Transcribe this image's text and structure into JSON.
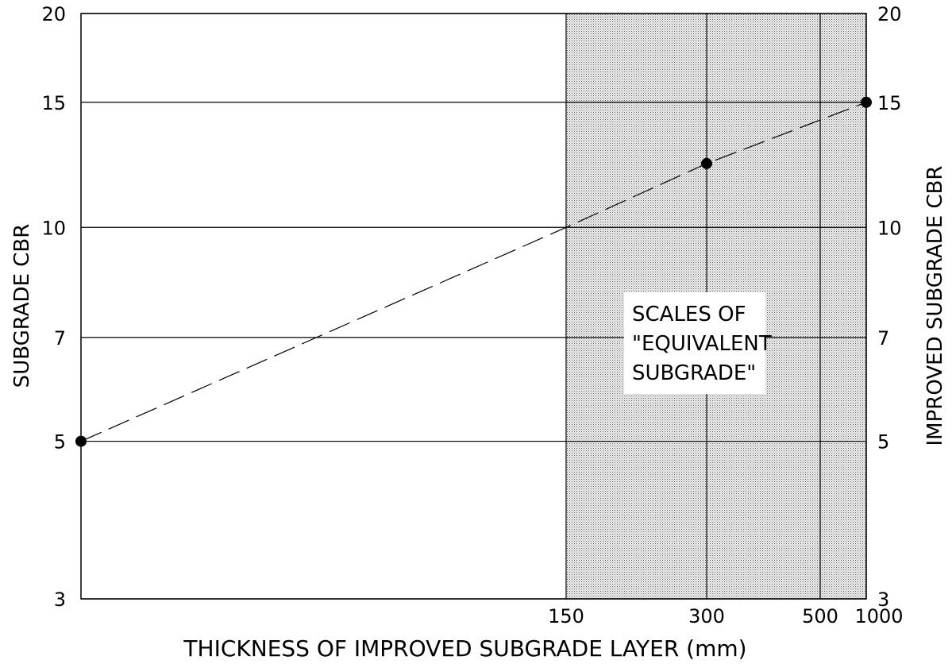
{
  "chart_data": {
    "type": "line",
    "x_axis": {
      "label": "THICKNESS OF IMPROVED SUBGRADE LAYER (mm)",
      "ticks": [
        "150",
        "300",
        "500",
        "1000"
      ],
      "scale": "non-uniform"
    },
    "y_left": {
      "label": "SUBGRADE CBR",
      "ticks": [
        3,
        5,
        7,
        10,
        15,
        20
      ],
      "scale": "log",
      "range": [
        3,
        20
      ]
    },
    "y_right": {
      "label": "IMPROVED SUBGRADE CBR",
      "ticks": [
        3,
        5,
        7,
        10,
        15,
        20
      ],
      "scale": "log",
      "range": [
        3,
        20
      ]
    },
    "shaded_region": {
      "from_x": "150",
      "to_x": "1000",
      "label_lines": [
        "SCALES OF",
        "\"EQUIVALENT",
        "SUBGRADE\""
      ]
    },
    "series": [
      {
        "style": "dashed",
        "points": [
          {
            "thickness": "0",
            "cbr": 5
          },
          {
            "thickness": "150",
            "cbr": 10
          },
          {
            "thickness": "300",
            "cbr": 12.3
          },
          {
            "thickness": "1000",
            "cbr": 15
          }
        ],
        "markers": [
          {
            "thickness": "0",
            "cbr": 5
          },
          {
            "thickness": "300",
            "cbr": 12.3
          },
          {
            "thickness": "1000",
            "cbr": 15
          }
        ]
      }
    ],
    "grid": "horizontal at CBR ticks, vertical at thickness ticks within shaded region"
  }
}
